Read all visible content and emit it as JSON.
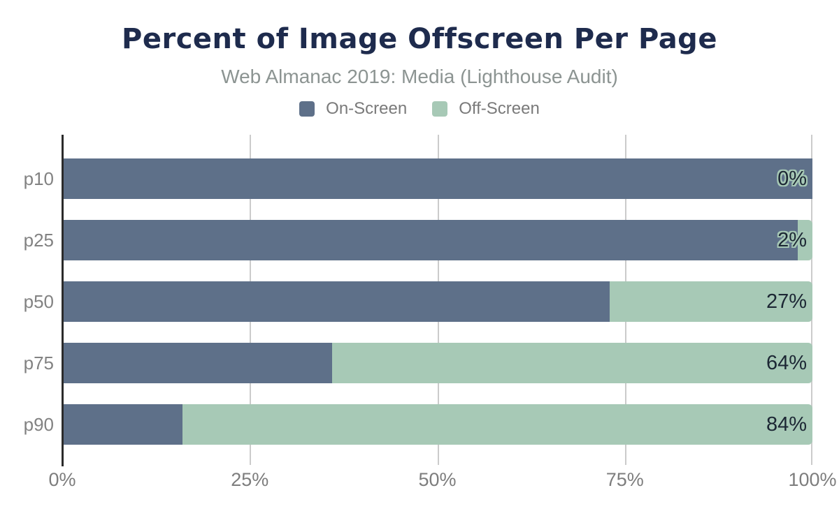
{
  "header": {
    "title": "Percent of Image Offscreen Per Page",
    "subtitle": "Web Almanac 2019: Media (Lighthouse Audit)"
  },
  "legend": {
    "items": [
      {
        "label": "On-Screen",
        "color": "#5e7089"
      },
      {
        "label": "Off-Screen",
        "color": "#a7c9b6"
      }
    ]
  },
  "colors": {
    "title": "#1e2b4d",
    "subtitle_text": "#8c9492",
    "axis_line": "#2b2b2b",
    "gridline": "#cbcbcb",
    "tick_text": "#7d7d7d",
    "bar_label_text": "#1c2734",
    "bar_label_halo": "#a7c9b6"
  },
  "chart_data": {
    "type": "bar",
    "orientation": "horizontal",
    "stacked": true,
    "title": "Percent of Image Offscreen Per Page",
    "subtitle": "Web Almanac 2019: Media (Lighthouse Audit)",
    "categories": [
      "p10",
      "p25",
      "p50",
      "p75",
      "p90"
    ],
    "series": [
      {
        "name": "On-Screen",
        "color": "#5e7089",
        "values": [
          100,
          98,
          73,
          36,
          16
        ]
      },
      {
        "name": "Off-Screen",
        "color": "#a7c9b6",
        "values": [
          0,
          2,
          27,
          64,
          84
        ]
      }
    ],
    "bar_labels": [
      "0%",
      "2%",
      "27%",
      "64%",
      "84%"
    ],
    "xlabel": "",
    "ylabel": "",
    "xlim": [
      0,
      100
    ],
    "xticks": [
      {
        "label": "0%",
        "value": 0
      },
      {
        "label": "25%",
        "value": 25
      },
      {
        "label": "50%",
        "value": 50
      },
      {
        "label": "75%",
        "value": 75
      },
      {
        "label": "100%",
        "value": 100
      }
    ],
    "grid": "vertical",
    "legend_position": "top"
  }
}
